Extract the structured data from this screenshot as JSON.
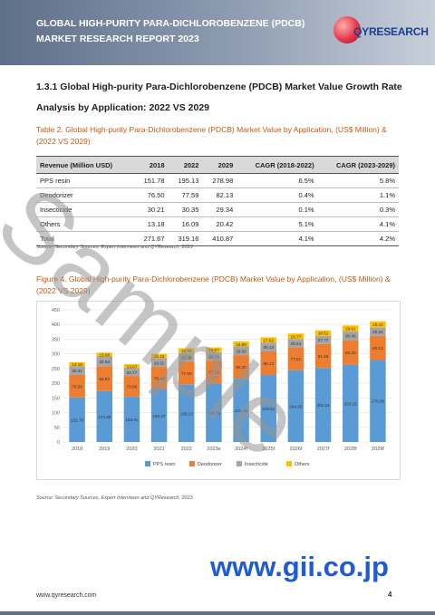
{
  "header": {
    "title": "GLOBAL HIGH-PURITY PARA-DICHLOROBENZENE (PDCB) MARKET RESEARCH REPORT 2023",
    "logo_text": "QYRESEARCH"
  },
  "section": {
    "number": "1.3.1",
    "title_line1": "1.3.1  Global High-purity Para-Dichlorobenzene (PDCB) Market Value Growth Rate",
    "title_line2": "Analysis by Application: 2022 VS 2029"
  },
  "table": {
    "caption": "Table 2.  Global High-purity Para-Dichlorobenzene (PDCB) Market Value by Application, (US$ Million) & (2022 VS 2029)",
    "headers": [
      "Revenue (Million USD)",
      "2018",
      "2022",
      "2029",
      "CAGR (2018-2022)",
      "CAGR (2023-2029)"
    ],
    "rows": [
      [
        "PPS resin",
        "151.78",
        "195.13",
        "278.98",
        "6.5%",
        "5.8%"
      ],
      [
        "Deodorizer",
        "76.50",
        "77.59",
        "82.13",
        "0.4%",
        "1.1%"
      ],
      [
        "Insecticide",
        "30.21",
        "30.35",
        "29.34",
        "0.1%",
        "0.3%"
      ],
      [
        "Others",
        "13.18",
        "16.09",
        "20.42",
        "5.1%",
        "4.1%"
      ],
      [
        "Total",
        "271.67",
        "319.16",
        "410.87",
        "4.1%",
        "4.2%"
      ]
    ],
    "source": "Source: Secondary Sources, Expert Interviews and QYResearch, 2023"
  },
  "figure": {
    "caption": "Figure 4.  Global High-purity Para-Dichlorobenzene (PDCB) Market Value by Application, (US$ Million) & (2022 VS 2029)",
    "source": "Source: Secondary Sources, Expert Interviews and QYResearch, 2023"
  },
  "chart_data": {
    "type": "bar",
    "stacked": true,
    "categories": [
      "2018",
      "2019",
      "2020",
      "2021",
      "2022",
      "2023e",
      "2024f",
      "2025f",
      "2026f",
      "2027f",
      "2028f",
      "2029f"
    ],
    "series": [
      {
        "name": "PPS resin",
        "color": "#5b9bd5",
        "values": [
          151.78,
          173.39,
          153.81,
          180.27,
          195.13,
          199.85,
          215.39,
          228.02,
          244.26,
          252.15,
          263.15,
          278.98
        ]
      },
      {
        "name": "Deodorizer",
        "color": "#ed7d31",
        "values": [
          76.5,
          84.82,
          70.9,
          75.44,
          77.59,
          77.14,
          80.3,
          80.13,
          77.61,
          81.53,
          83.2,
          82.13
        ]
      },
      {
        "name": "Insecticide",
        "color": "#a5a5a5",
        "values": [
          30.21,
          32.93,
          26.77,
          29.31,
          30.35,
          28.74,
          29.5,
          30.13,
          28.54,
          27.77,
          30.46,
          29.34
        ]
      },
      {
        "name": "Others",
        "color": "#ffc000",
        "values": [
          13.18,
          13.08,
          13.07,
          15.18,
          16.09,
          16.07,
          16.89,
          17.92,
          18.77,
          18.51,
          19.91,
          20.42
        ]
      }
    ],
    "ylim": [
      0,
      450
    ],
    "yticks": [
      "0",
      "50",
      "100",
      "150",
      "200",
      "250",
      "300",
      "350",
      "400",
      "450"
    ],
    "legend": "bottom",
    "grid": true
  },
  "watermark": "Sample",
  "gii_url": "www.gii.co.jp",
  "footer": {
    "url": "www.qyresearch.com",
    "page": "4"
  }
}
